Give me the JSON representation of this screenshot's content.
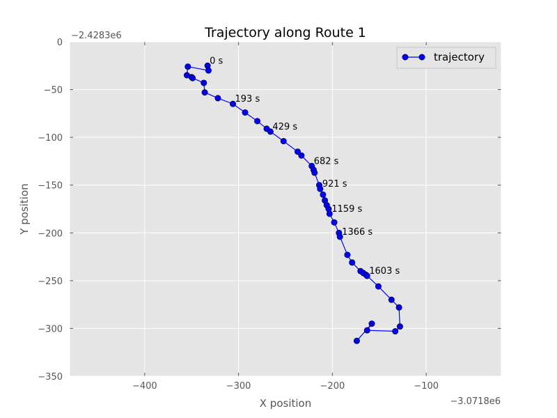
{
  "chart_data": {
    "type": "line",
    "title": "Trajectory along Route 1",
    "xlabel": "X position",
    "ylabel": "Y position",
    "x_offset_label": "−3.0718e6",
    "y_offset_label": "−2.4283e6",
    "xlim": [
      -480,
      -20
    ],
    "ylim": [
      -350,
      0
    ],
    "xticks": [
      -400,
      -300,
      -200,
      -100
    ],
    "yticks": [
      0,
      -50,
      -100,
      -150,
      -200,
      -250,
      -300,
      -350
    ],
    "xtick_labels": [
      "−400",
      "−300",
      "−200",
      "−100"
    ],
    "ytick_labels": [
      "0",
      "−50",
      "−100",
      "−150",
      "−200",
      "−250",
      "−300",
      "−350"
    ],
    "grid": true,
    "legend_position": "top-right",
    "colors": {
      "line": "#0000ff",
      "marker": "#0000ff",
      "marker_edge": "#000000",
      "background": "#e5e5e5",
      "grid": "#ffffff"
    },
    "series": [
      {
        "name": "trajectory",
        "x": [
          -333,
          -332,
          -354,
          -355,
          -350,
          -349,
          -337,
          -336,
          -322,
          -306,
          -293,
          -280,
          -270,
          -266,
          -252,
          -237,
          -233,
          -222,
          -220,
          -219,
          -214,
          -213,
          -210,
          -208,
          -206,
          -204,
          -203,
          -198,
          -193,
          -192,
          -184,
          -179,
          -170,
          -167,
          -164,
          -163,
          -151,
          -137,
          -129,
          -128,
          -133,
          -163,
          -158,
          -174
        ],
        "y": [
          -25,
          -30,
          -26,
          -35,
          -37,
          -38,
          -43,
          -53,
          -59,
          -65,
          -74,
          -83,
          -91,
          -94,
          -104,
          -115,
          -119,
          -130,
          -134,
          -137,
          -150,
          -154,
          -160,
          -166,
          -171,
          -175,
          -180,
          -189,
          -200,
          -204,
          -223,
          -231,
          -240,
          -242,
          -244,
          -245,
          -256,
          -270,
          -278,
          -298,
          -303,
          -302,
          -295,
          -313
        ]
      }
    ],
    "annotations": [
      {
        "text": "0 s",
        "x": -333,
        "y": -25
      },
      {
        "text": "193 s",
        "x": -306,
        "y": -65
      },
      {
        "text": "429 s",
        "x": -266,
        "y": -94
      },
      {
        "text": "682 s",
        "x": -222,
        "y": -130
      },
      {
        "text": "921 s",
        "x": -213,
        "y": -154
      },
      {
        "text": "1159 s",
        "x": -203,
        "y": -180
      },
      {
        "text": "1366 s",
        "x": -192,
        "y": -204
      },
      {
        "text": "1603 s",
        "x": -163,
        "y": -245
      }
    ]
  }
}
